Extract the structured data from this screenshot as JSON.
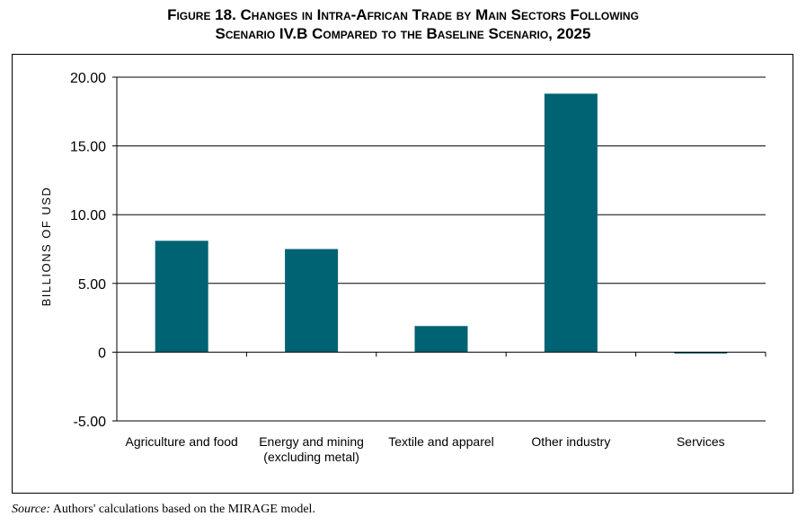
{
  "title_line1": "Figure 18. Changes in Intra-African Trade by Main Sectors Following",
  "title_line2": "Scenario IV.B Compared to the Baseline Scenario, 2025",
  "source_label": "Source:",
  "source_text": " Authors' calculations based on the MIRAGE model.",
  "colors": {
    "bar": "#006373"
  },
  "chart_data": {
    "type": "bar",
    "title": "Figure 18. Changes in Intra-African Trade by Main Sectors Following Scenario IV.B Compared to the Baseline Scenario, 2025",
    "xlabel": "",
    "ylabel": "BILLIONS OF USD",
    "ylim": [
      -5,
      20
    ],
    "yticks": [
      20,
      15,
      10,
      5,
      0,
      -5
    ],
    "ytick_labels": [
      "20.00",
      "15.00",
      "10.00",
      "5.00",
      "0",
      "-5.00"
    ],
    "grid": true,
    "categories": [
      [
        "Agriculture and food"
      ],
      [
        "Energy and mining",
        "(excluding metal)"
      ],
      [
        "Textile and apparel"
      ],
      [
        "Other industry"
      ],
      [
        "Services"
      ]
    ],
    "values": [
      8.1,
      7.5,
      1.9,
      18.8,
      -0.1
    ]
  }
}
